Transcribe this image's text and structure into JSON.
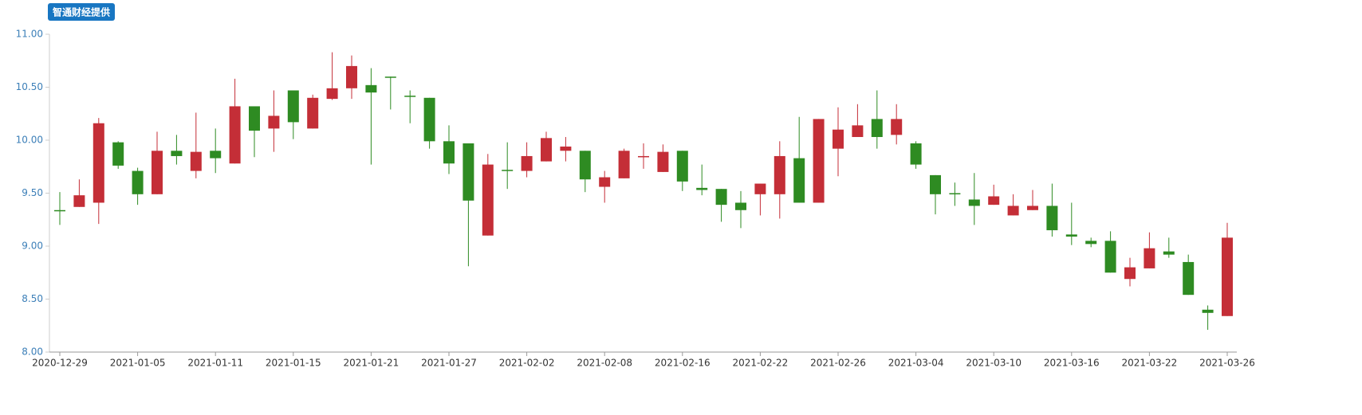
{
  "chart_data": {
    "type": "candlestick",
    "source": "智通财经提供",
    "categories": [
      "2020-12-29",
      null,
      null,
      null,
      "2021-01-05",
      null,
      null,
      null,
      "2021-01-11",
      null,
      null,
      null,
      "2021-01-15",
      null,
      null,
      null,
      "2021-01-21",
      null,
      null,
      null,
      "2021-01-27",
      null,
      null,
      null,
      "2021-02-02",
      null,
      null,
      null,
      "2021-02-08",
      null,
      null,
      null,
      "2021-02-16",
      null,
      null,
      null,
      "2021-02-22",
      null,
      null,
      null,
      "2021-02-26",
      null,
      null,
      null,
      "2021-03-04",
      null,
      null,
      null,
      "2021-03-10",
      null,
      null,
      null,
      "2021-03-16",
      null,
      null,
      null,
      "2021-03-22",
      null,
      null,
      null,
      "2021-03-26"
    ],
    "open": [
      9.34,
      9.37,
      9.41,
      9.98,
      9.71,
      9.49,
      9.9,
      9.71,
      9.9,
      9.78,
      10.32,
      10.11,
      10.47,
      10.11,
      10.39,
      10.49,
      10.52,
      10.6,
      10.42,
      10.4,
      9.99,
      9.97,
      9.1,
      9.72,
      9.71,
      9.8,
      9.9,
      9.9,
      9.56,
      9.64,
      9.84,
      9.7,
      9.9,
      9.55,
      9.54,
      9.41,
      9.49,
      9.49,
      9.83,
      9.41,
      9.92,
      10.03,
      10.2,
      10.05,
      9.97,
      9.67,
      9.5,
      9.44,
      9.39,
      9.29,
      9.34,
      9.38,
      9.11,
      9.05,
      9.05,
      8.69,
      8.79,
      8.95,
      8.85,
      8.4,
      8.34
    ],
    "high": [
      9.51,
      9.63,
      10.21,
      9.99,
      9.74,
      10.08,
      10.05,
      10.26,
      10.11,
      10.58,
      10.32,
      10.47,
      10.47,
      10.43,
      10.83,
      10.8,
      10.68,
      10.6,
      10.47,
      10.4,
      10.14,
      9.97,
      9.87,
      9.98,
      9.98,
      10.08,
      10.03,
      9.9,
      9.71,
      9.92,
      9.97,
      9.96,
      9.9,
      9.77,
      9.54,
      9.52,
      9.59,
      9.99,
      10.22,
      10.2,
      10.31,
      10.34,
      10.47,
      10.34,
      9.99,
      9.67,
      9.6,
      9.69,
      9.58,
      9.49,
      9.53,
      9.59,
      9.41,
      9.08,
      9.14,
      8.89,
      9.13,
      9.08,
      8.92,
      8.44,
      9.22
    ],
    "low": [
      9.2,
      9.37,
      9.21,
      9.73,
      9.39,
      9.49,
      9.77,
      9.64,
      9.69,
      9.78,
      9.84,
      9.89,
      10.01,
      10.11,
      10.38,
      10.39,
      9.77,
      10.29,
      10.16,
      9.92,
      9.68,
      8.81,
      9.1,
      9.54,
      9.65,
      9.8,
      9.8,
      9.51,
      9.41,
      9.64,
      9.73,
      9.7,
      9.52,
      9.48,
      9.23,
      9.17,
      9.29,
      9.26,
      9.41,
      9.41,
      9.66,
      10.03,
      9.92,
      9.96,
      9.73,
      9.3,
      9.38,
      9.2,
      9.39,
      9.29,
      9.34,
      9.09,
      9.01,
      8.99,
      8.75,
      8.62,
      8.79,
      8.89,
      8.54,
      8.21,
      8.34
    ],
    "close": [
      9.33,
      9.48,
      10.16,
      9.76,
      9.49,
      9.9,
      9.85,
      9.89,
      9.83,
      10.32,
      10.09,
      10.23,
      10.17,
      10.4,
      10.49,
      10.7,
      10.45,
      10.59,
      10.41,
      9.99,
      9.78,
      9.43,
      9.77,
      9.71,
      9.85,
      10.02,
      9.94,
      9.63,
      9.65,
      9.9,
      9.85,
      9.89,
      9.61,
      9.53,
      9.39,
      9.34,
      9.59,
      9.85,
      9.41,
      10.2,
      10.1,
      10.14,
      10.03,
      10.2,
      9.77,
      9.49,
      9.49,
      9.38,
      9.47,
      9.38,
      9.38,
      9.15,
      9.09,
      9.02,
      8.75,
      8.8,
      8.98,
      8.92,
      8.54,
      8.37,
      9.08
    ],
    "up_color": "#c42e37",
    "down_color": "#2e8b22",
    "ylim": [
      8,
      11
    ],
    "yticks": [
      {
        "value": 8,
        "label": "8.00"
      },
      {
        "value": 8.5,
        "label": "8.50"
      },
      {
        "value": 9,
        "label": "9.00"
      },
      {
        "value": 9.5,
        "label": "9.50"
      },
      {
        "value": 10,
        "label": "10.00"
      },
      {
        "value": 10.5,
        "label": "10.50"
      },
      {
        "value": 11,
        "label": "11.00"
      }
    ]
  }
}
